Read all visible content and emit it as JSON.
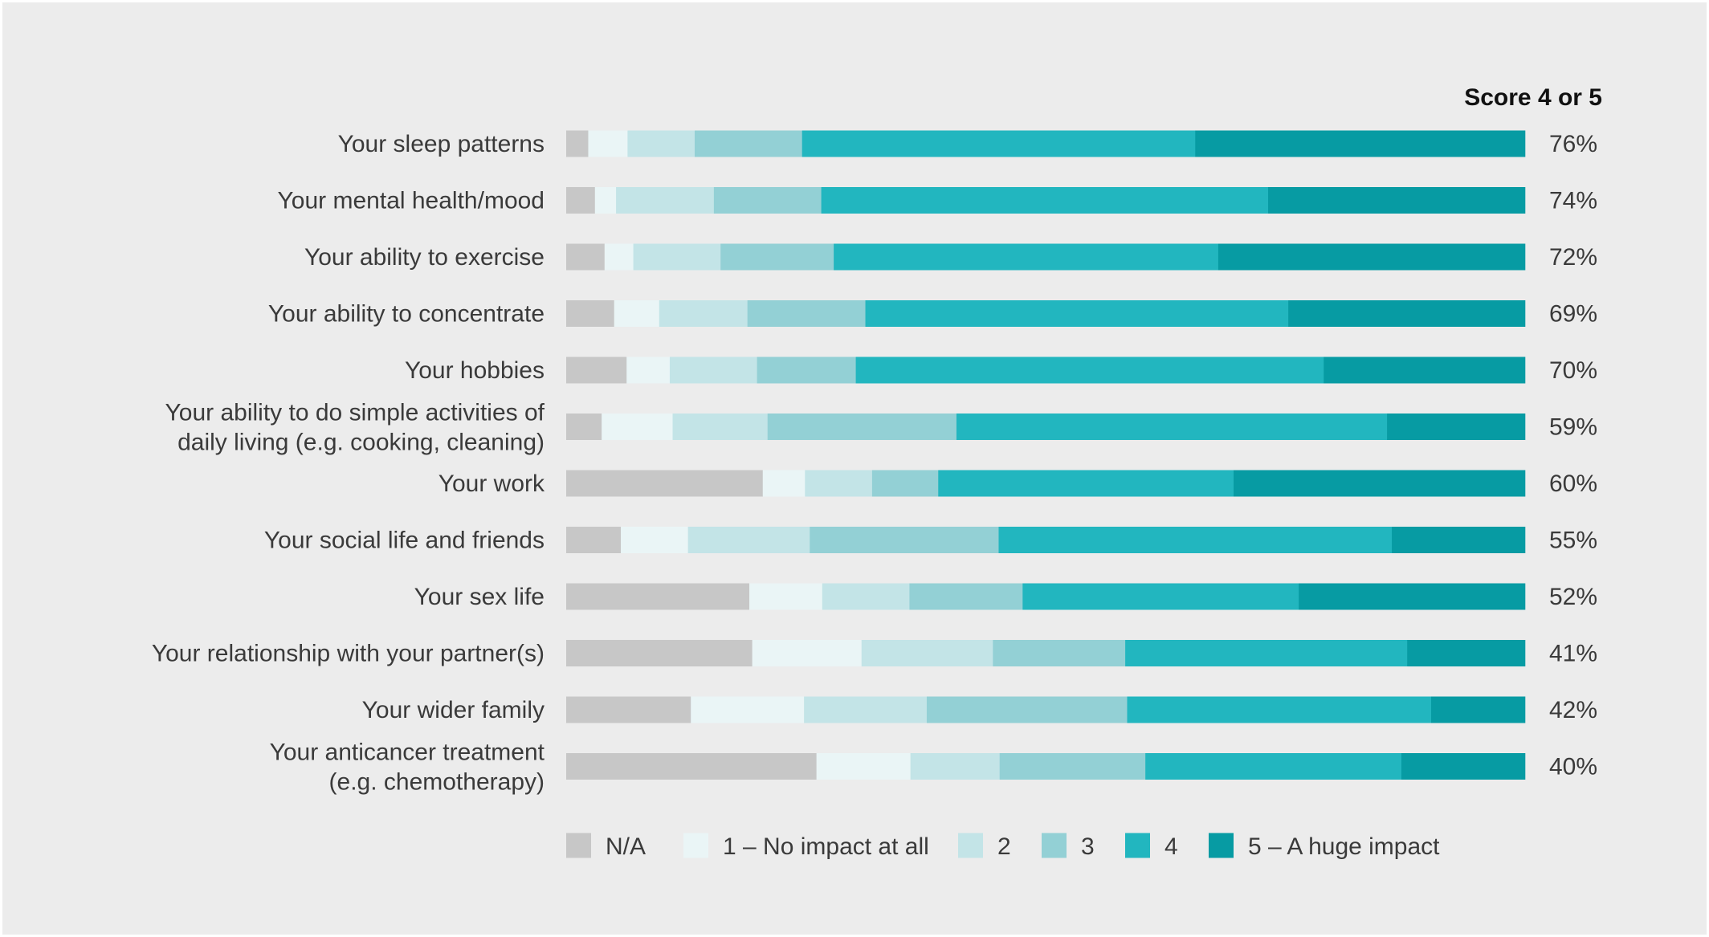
{
  "chart_data": {
    "type": "bar",
    "orientation": "horizontal",
    "stacking": "percent",
    "score_header": "Score 4 or 5",
    "categories": [
      [
        "Your sleep patterns"
      ],
      [
        "Your mental health/mood"
      ],
      [
        "Your ability to exercise"
      ],
      [
        "Your ability to concentrate"
      ],
      [
        "Your hobbies"
      ],
      [
        "Your ability to do simple activities of",
        "daily living (e.g. cooking, cleaning)"
      ],
      [
        "Your work"
      ],
      [
        "Your social life and friends"
      ],
      [
        "Your sex life"
      ],
      [
        "Your relationship with your partner(s)"
      ],
      [
        "Your wider family"
      ],
      [
        "Your anticancer treatment",
        "(e.g. chemotherapy)"
      ]
    ],
    "score_labels": [
      "76%",
      "74%",
      "72%",
      "69%",
      "70%",
      "59%",
      "60%",
      "55%",
      "52%",
      "41%",
      "42%",
      "40%"
    ],
    "series": [
      {
        "name": "N/A",
        "color": "#c7c7c7",
        "values": [
          2.3,
          3.0,
          4.0,
          5.0,
          6.3,
          3.7,
          20.5,
          5.7,
          19.1,
          19.4,
          13.0,
          26.1
        ]
      },
      {
        "name": "1 – No impact at all",
        "color": "#eaf5f6",
        "values": [
          4.1,
          2.2,
          3.0,
          4.7,
          4.5,
          7.4,
          4.4,
          7.0,
          7.6,
          11.4,
          11.8,
          9.8
        ]
      },
      {
        "name": "2",
        "color": "#c3e4e7",
        "values": [
          7.0,
          10.2,
          9.1,
          9.2,
          9.1,
          9.9,
          7.0,
          12.7,
          9.1,
          13.7,
          12.8,
          9.3
        ]
      },
      {
        "name": "3",
        "color": "#93d0d5",
        "values": [
          11.2,
          11.2,
          11.8,
          12.3,
          10.3,
          19.7,
          6.9,
          19.7,
          11.8,
          13.8,
          20.9,
          15.2
        ]
      },
      {
        "name": "4",
        "color": "#22b6bf",
        "values": [
          41.0,
          46.6,
          40.1,
          44.1,
          48.8,
          44.9,
          30.8,
          41.0,
          28.8,
          29.4,
          31.7,
          26.7
        ]
      },
      {
        "name": "5 – A huge impact",
        "color": "#079ba3",
        "values": [
          34.4,
          26.8,
          32.0,
          24.7,
          21.0,
          14.4,
          30.4,
          13.9,
          23.6,
          12.3,
          9.8,
          12.9
        ]
      }
    ],
    "xlim": [
      0,
      100
    ],
    "legend_position": "bottom",
    "grid": false
  }
}
